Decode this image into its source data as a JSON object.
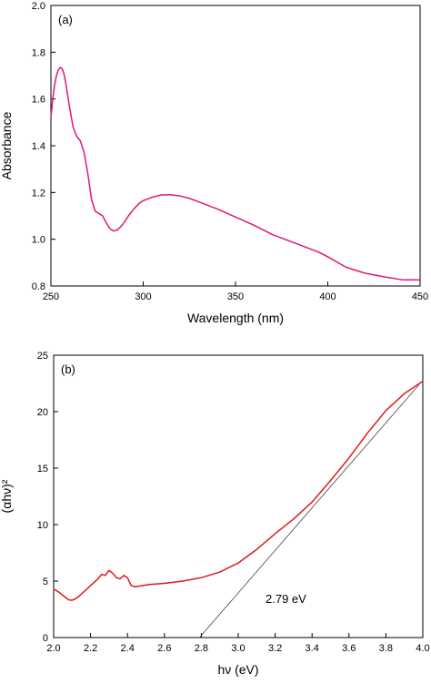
{
  "chart_data": [
    {
      "type": "line",
      "panel_label": "(a)",
      "xlabel": "Wavelength (nm)",
      "ylabel": "Absorbance",
      "xlim": [
        250,
        450
      ],
      "ylim": [
        0.8,
        2.0
      ],
      "xticks": [
        250,
        300,
        350,
        400,
        450
      ],
      "yticks": [
        0.8,
        1.0,
        1.2,
        1.4,
        1.6,
        1.8,
        2.0
      ],
      "xtick_labels": [
        "250",
        "300",
        "350",
        "400",
        "450"
      ],
      "ytick_labels": [
        "0.8",
        "1.0",
        "1.2",
        "1.4",
        "1.6",
        "1.8",
        "2.0"
      ],
      "grid": false,
      "series": [
        {
          "color": "#e0167a",
          "x": [
            250,
            251,
            252,
            253,
            254,
            255,
            256,
            257,
            258,
            259,
            260,
            262,
            264,
            266,
            268,
            270,
            272,
            274,
            276,
            278,
            280,
            282,
            284,
            286,
            288,
            290,
            292,
            295,
            298,
            300,
            305,
            310,
            315,
            320,
            325,
            330,
            340,
            350,
            360,
            370,
            380,
            390,
            395,
            400,
            410,
            420,
            430,
            440,
            450
          ],
          "y": [
            1.52,
            1.6,
            1.66,
            1.7,
            1.725,
            1.735,
            1.73,
            1.71,
            1.67,
            1.62,
            1.57,
            1.48,
            1.44,
            1.42,
            1.37,
            1.28,
            1.17,
            1.12,
            1.11,
            1.1,
            1.07,
            1.045,
            1.035,
            1.04,
            1.055,
            1.075,
            1.1,
            1.13,
            1.155,
            1.165,
            1.18,
            1.19,
            1.19,
            1.185,
            1.175,
            1.16,
            1.13,
            1.095,
            1.06,
            1.02,
            0.99,
            0.96,
            0.945,
            0.925,
            0.88,
            0.855,
            0.84,
            0.827,
            0.826
          ]
        }
      ]
    },
    {
      "type": "line",
      "panel_label": "(b)",
      "xlabel": "hν (eV)",
      "ylabel": "(αhν)²",
      "xlim": [
        2.0,
        4.0
      ],
      "ylim": [
        0,
        25
      ],
      "xticks": [
        2.0,
        2.2,
        2.4,
        2.6,
        2.8,
        3.0,
        3.2,
        3.4,
        3.6,
        3.8,
        4.0
      ],
      "yticks": [
        0,
        5,
        10,
        15,
        20,
        25
      ],
      "xtick_labels": [
        "2.0",
        "2.2",
        "2.4",
        "2.6",
        "2.8",
        "3.0",
        "3.2",
        "3.4",
        "3.6",
        "3.8",
        "4.0"
      ],
      "ytick_labels": [
        "0",
        "5",
        "10",
        "15",
        "20",
        "25"
      ],
      "grid": false,
      "annotation": "2.79 eV",
      "series": [
        {
          "color": "#dd1a1a",
          "x": [
            2.0,
            2.03,
            2.06,
            2.08,
            2.1,
            2.12,
            2.14,
            2.16,
            2.18,
            2.2,
            2.22,
            2.24,
            2.26,
            2.28,
            2.3,
            2.32,
            2.34,
            2.36,
            2.38,
            2.4,
            2.42,
            2.44,
            2.48,
            2.52,
            2.56,
            2.6,
            2.7,
            2.8,
            2.9,
            3.0,
            3.1,
            3.2,
            3.3,
            3.4,
            3.5,
            3.6,
            3.7,
            3.8,
            3.9,
            4.0
          ],
          "y": [
            4.3,
            4.0,
            3.6,
            3.35,
            3.3,
            3.45,
            3.7,
            4.0,
            4.3,
            4.6,
            4.9,
            5.2,
            5.6,
            5.5,
            5.95,
            5.7,
            5.3,
            5.2,
            5.5,
            5.3,
            4.6,
            4.5,
            4.6,
            4.7,
            4.75,
            4.8,
            5.0,
            5.3,
            5.8,
            6.6,
            7.8,
            9.2,
            10.5,
            12.0,
            13.9,
            15.9,
            18.1,
            20.1,
            21.6,
            22.7
          ]
        },
        {
          "name": "",
          "style": "thin-fit",
          "color": "#444444",
          "x": [
            2.79,
            3.98
          ],
          "y": [
            0,
            22.4
          ]
        }
      ]
    }
  ]
}
